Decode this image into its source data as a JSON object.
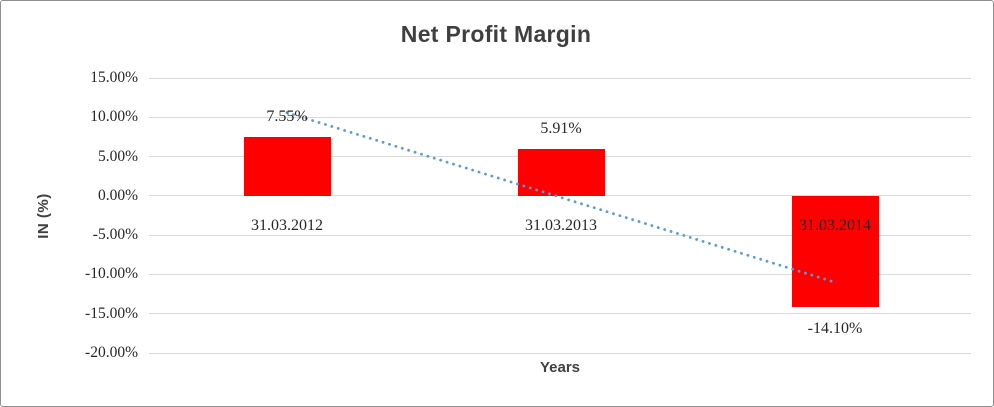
{
  "chart_data": {
    "type": "bar",
    "title": "Net Profit Margin",
    "xlabel": "Years",
    "ylabel": "IN (%)",
    "categories": [
      "31.03.2012",
      "31.03.2013",
      "31.03.2014"
    ],
    "values": [
      7.55,
      5.91,
      -14.1
    ],
    "value_labels": [
      "7.55%",
      "5.91%",
      "-14.10%"
    ],
    "yticks": [
      {
        "value": 15,
        "label": "15.00%"
      },
      {
        "value": 10,
        "label": "10.00%"
      },
      {
        "value": 5,
        "label": "5.00%"
      },
      {
        "value": 0,
        "label": "0.00%"
      },
      {
        "value": -5,
        "label": "-5.00%"
      },
      {
        "value": -10,
        "label": "-10.00%"
      },
      {
        "value": -15,
        "label": "-15.00%"
      },
      {
        "value": -20,
        "label": "-20.00%"
      }
    ],
    "ylim": [
      -20,
      15
    ],
    "grid": true,
    "legend": "none",
    "bar_color": "#FF0000",
    "trendline": {
      "type": "linear",
      "style": "dotted",
      "color": "#5B9BD5",
      "start_value": 10.6,
      "end_value": -11.0
    },
    "colors": {
      "gridline": "#D9D9D9",
      "title_text": "#3F3F3F",
      "axis_title_text": "#404040",
      "tick_text": "#262626",
      "border": "#8F8F8F",
      "background": "#FFFFFF"
    }
  }
}
